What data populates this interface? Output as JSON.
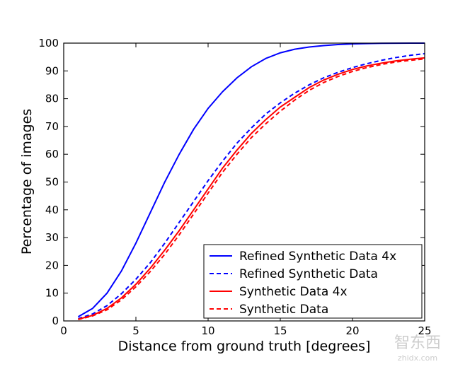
{
  "chart_data": {
    "type": "line",
    "title": "",
    "xlabel": "Distance from ground truth [degrees]",
    "ylabel": "Percentage of images",
    "xlim": [
      0,
      25
    ],
    "ylim": [
      0,
      100
    ],
    "xticks": [
      0,
      5,
      10,
      15,
      20,
      25
    ],
    "yticks": [
      0,
      10,
      20,
      30,
      40,
      50,
      60,
      70,
      80,
      90,
      100
    ],
    "grid": false,
    "legend_position": "bottom-right",
    "x": [
      1,
      2,
      3,
      4,
      5,
      6,
      7,
      8,
      9,
      10,
      11,
      12,
      13,
      14,
      15,
      16,
      17,
      18,
      19,
      20,
      21,
      22,
      23,
      24,
      25
    ],
    "series": [
      {
        "name": "Refined Synthetic Data 4x",
        "color": "#0000ff",
        "style": "solid",
        "values": [
          1.5,
          4.5,
          10,
          18,
          28,
          39,
          50,
          60,
          69,
          76.5,
          82.5,
          87.5,
          91.5,
          94.5,
          96.5,
          97.8,
          98.6,
          99.1,
          99.5,
          99.7,
          99.85,
          99.92,
          99.96,
          99.99,
          100
        ]
      },
      {
        "name": "Refined Synthetic Data",
        "color": "#0000ff",
        "style": "dashed",
        "values": [
          0.8,
          2.5,
          5.5,
          9.8,
          15,
          21,
          28,
          35.5,
          43,
          50.5,
          57.5,
          64,
          69.5,
          74.5,
          78.5,
          82,
          85,
          87.5,
          89.5,
          91.2,
          92.6,
          93.8,
          94.8,
          95.6,
          96.2
        ]
      },
      {
        "name": "Synthetic Data 4x",
        "color": "#ff0000",
        "style": "solid",
        "values": [
          0.6,
          2,
          4.5,
          8.3,
          13.2,
          19,
          25.5,
          32.5,
          40,
          47.5,
          55,
          61.5,
          67.5,
          72.5,
          77,
          80.5,
          84,
          86.7,
          88.8,
          90.5,
          91.8,
          92.8,
          93.6,
          94.2,
          94.7
        ]
      },
      {
        "name": "Synthetic Data",
        "color": "#ff0000",
        "style": "dashed",
        "values": [
          0.5,
          1.8,
          4,
          7.6,
          12.3,
          17.8,
          24,
          31,
          38.5,
          46,
          53.5,
          60,
          66,
          71,
          75.5,
          79.5,
          83,
          85.8,
          88,
          89.8,
          91.2,
          92.3,
          93.2,
          93.8,
          94.3
        ]
      }
    ]
  },
  "watermark": {
    "glyphs": "智东西",
    "text": "zhidx.com"
  }
}
